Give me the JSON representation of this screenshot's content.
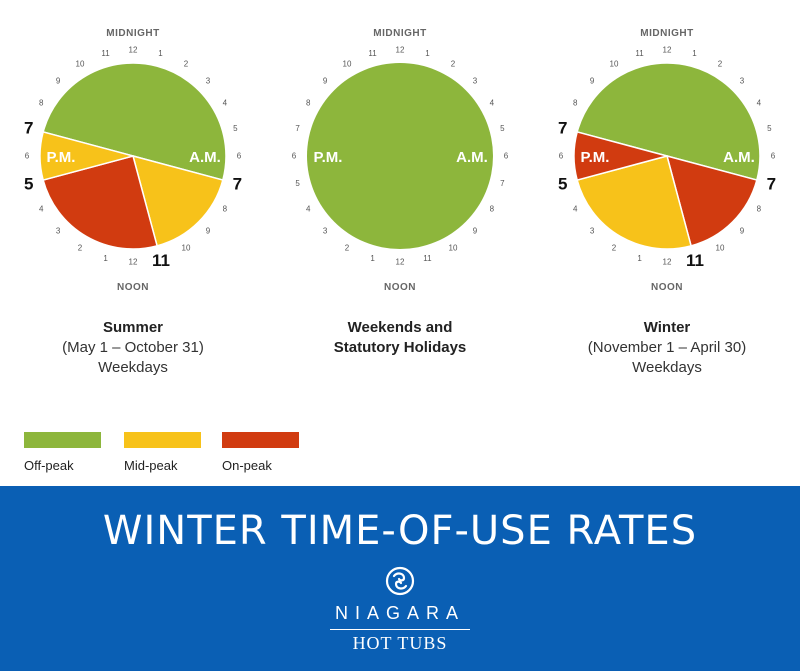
{
  "colors": {
    "off_peak": "#8db63c",
    "mid_peak": "#f7c21a",
    "on_peak": "#d13b10",
    "banner": "#0a5fb4"
  },
  "clock_labels": {
    "midnight": "MIDNIGHT",
    "noon": "NOON",
    "am": "A.M.",
    "pm": "P.M.",
    "hour_numbers": [
      "12",
      "1",
      "2",
      "3",
      "4",
      "5",
      "6",
      "7",
      "8",
      "9",
      "10",
      "11",
      "12",
      "1",
      "2",
      "3",
      "4",
      "5",
      "6",
      "7",
      "8",
      "9",
      "10",
      "11"
    ]
  },
  "clocks": [
    {
      "caption_title": "Summer",
      "caption_lines": [
        "(May 1 – October 31)",
        "Weekdays"
      ],
      "emphasized_hours": [
        "7",
        "11",
        "5",
        "7"
      ],
      "segments": [
        {
          "rate": "off_peak",
          "start_hour": 19,
          "end_hour": 7
        },
        {
          "rate": "mid_peak",
          "start_hour": 7,
          "end_hour": 11
        },
        {
          "rate": "on_peak",
          "start_hour": 11,
          "end_hour": 17
        },
        {
          "rate": "mid_peak",
          "start_hour": 17,
          "end_hour": 19
        }
      ]
    },
    {
      "caption_title": "Weekends and",
      "caption_lines": [
        "Statutory Holidays"
      ],
      "caption_second_bold": true,
      "emphasized_hours": [],
      "segments": [
        {
          "rate": "off_peak",
          "start_hour": 0,
          "end_hour": 24
        }
      ]
    },
    {
      "caption_title": "Winter",
      "caption_lines": [
        "(November 1 – April 30)",
        "Weekdays"
      ],
      "emphasized_hours": [
        "7",
        "11",
        "5",
        "7"
      ],
      "segments": [
        {
          "rate": "off_peak",
          "start_hour": 19,
          "end_hour": 7
        },
        {
          "rate": "on_peak",
          "start_hour": 7,
          "end_hour": 11
        },
        {
          "rate": "mid_peak",
          "start_hour": 11,
          "end_hour": 17
        },
        {
          "rate": "on_peak",
          "start_hour": 17,
          "end_hour": 19
        }
      ]
    }
  ],
  "legend": [
    {
      "label": "Off-peak",
      "rate": "off_peak"
    },
    {
      "label": "Mid-peak",
      "rate": "mid_peak"
    },
    {
      "label": "On-peak",
      "rate": "on_peak"
    }
  ],
  "banner": {
    "title": "WINTER TIME-OF-USE RATES",
    "brand_top": "NIAGARA",
    "brand_bottom": "HOT TUBS",
    "logo_icon": "swirl-logo-icon"
  }
}
